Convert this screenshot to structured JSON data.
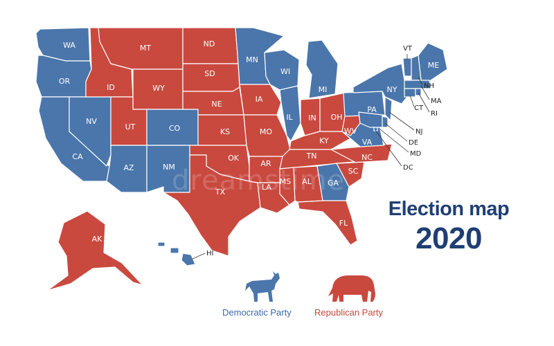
{
  "colors": {
    "democratic": "#4a76ab",
    "republican": "#c9493f"
  },
  "title": {
    "line1": "Election map",
    "line2": "2020"
  },
  "legend": {
    "democratic": {
      "label": "Democratic Party",
      "icon": "donkey-icon"
    },
    "republican": {
      "label": "Republican Party",
      "icon": "elephant-icon"
    }
  },
  "watermark": "dreamstime",
  "states": [
    {
      "code": "WA",
      "party": "democratic"
    },
    {
      "code": "OR",
      "party": "democratic"
    },
    {
      "code": "CA",
      "party": "democratic"
    },
    {
      "code": "NV",
      "party": "democratic"
    },
    {
      "code": "ID",
      "party": "republican"
    },
    {
      "code": "MT",
      "party": "republican"
    },
    {
      "code": "WY",
      "party": "republican"
    },
    {
      "code": "UT",
      "party": "republican"
    },
    {
      "code": "AZ",
      "party": "democratic"
    },
    {
      "code": "CO",
      "party": "democratic"
    },
    {
      "code": "NM",
      "party": "democratic"
    },
    {
      "code": "ND",
      "party": "republican"
    },
    {
      "code": "SD",
      "party": "republican"
    },
    {
      "code": "NE",
      "party": "republican"
    },
    {
      "code": "KS",
      "party": "republican"
    },
    {
      "code": "OK",
      "party": "republican"
    },
    {
      "code": "TX",
      "party": "republican"
    },
    {
      "code": "MN",
      "party": "democratic"
    },
    {
      "code": "IA",
      "party": "republican"
    },
    {
      "code": "MO",
      "party": "republican"
    },
    {
      "code": "AR",
      "party": "republican"
    },
    {
      "code": "LA",
      "party": "republican"
    },
    {
      "code": "WI",
      "party": "democratic"
    },
    {
      "code": "IL",
      "party": "democratic"
    },
    {
      "code": "MI",
      "party": "democratic"
    },
    {
      "code": "IN",
      "party": "republican"
    },
    {
      "code": "OH",
      "party": "republican"
    },
    {
      "code": "KY",
      "party": "republican"
    },
    {
      "code": "TN",
      "party": "republican"
    },
    {
      "code": "MS",
      "party": "republican"
    },
    {
      "code": "AL",
      "party": "republican"
    },
    {
      "code": "GA",
      "party": "democratic"
    },
    {
      "code": "FL",
      "party": "republican"
    },
    {
      "code": "SC",
      "party": "republican"
    },
    {
      "code": "NC",
      "party": "republican"
    },
    {
      "code": "VA",
      "party": "democratic"
    },
    {
      "code": "WV",
      "party": "republican"
    },
    {
      "code": "PA",
      "party": "democratic"
    },
    {
      "code": "NY",
      "party": "democratic"
    },
    {
      "code": "ME",
      "party": "democratic"
    },
    {
      "code": "AK",
      "party": "republican"
    },
    {
      "code": "HI",
      "party": "democratic"
    },
    {
      "code": "VT",
      "party": "democratic"
    },
    {
      "code": "NH",
      "party": "democratic"
    },
    {
      "code": "MA",
      "party": "democratic"
    },
    {
      "code": "CT",
      "party": "democratic"
    },
    {
      "code": "RI",
      "party": "democratic"
    },
    {
      "code": "NJ",
      "party": "democratic"
    },
    {
      "code": "DE",
      "party": "democratic"
    },
    {
      "code": "MD",
      "party": "democratic"
    },
    {
      "code": "DC",
      "party": "democratic"
    }
  ]
}
